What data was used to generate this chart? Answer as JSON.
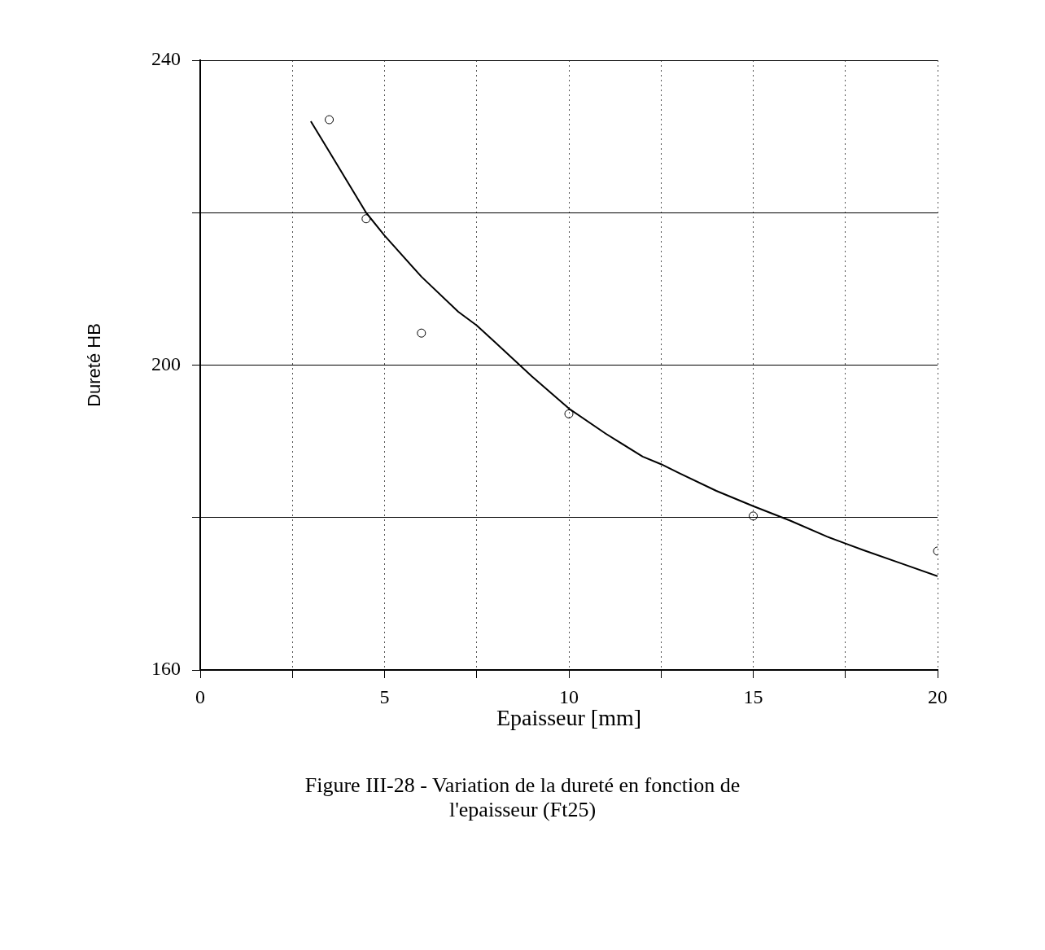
{
  "chart_data": {
    "type": "scatter",
    "title": "Figure III-28 - Variation de la dureté en fonction de l'epaisseur (Ft25)",
    "xlabel": "Epaisseur [mm]",
    "ylabel": "Dureté HB",
    "xlim": [
      0,
      20
    ],
    "xticks": [
      0,
      {
        "value": 2.5,
        "label": null
      },
      5,
      {
        "value": 7.5,
        "label": null
      },
      10,
      {
        "value": 12.5,
        "label": null
      },
      15,
      {
        "value": 17.5,
        "label": null
      },
      20
    ],
    "ylim": [
      160,
      240
    ],
    "yticks": [
      160,
      {
        "value": 180,
        "label": null
      },
      200,
      {
        "value": 220,
        "label": null
      },
      240
    ],
    "grid": true,
    "legend": false,
    "series": [
      {
        "color": "#000000",
        "marker": "circle",
        "x": [
          3.5,
          4.5,
          6,
          10,
          15,
          20
        ],
        "values": [
          232.2,
          219.2,
          204.2,
          193.6,
          180.2,
          175.6
        ]
      },
      {
        "type": "line",
        "color": "#000000",
        "marker": "none",
        "line_style": "solid",
        "x": [
          3,
          3.5,
          4,
          4.5,
          5,
          6,
          7,
          7.5,
          8,
          9,
          10,
          11,
          12,
          12.5,
          13,
          14,
          15,
          16,
          17,
          17.5,
          18,
          19,
          20
        ],
        "values": [
          232,
          228,
          224,
          220,
          217,
          211.6,
          207,
          205.2,
          203,
          198.5,
          194.3,
          191,
          188,
          187,
          185.8,
          183.5,
          181.5,
          179.6,
          177.5,
          176.6,
          175.7,
          174,
          172.3
        ]
      }
    ]
  }
}
